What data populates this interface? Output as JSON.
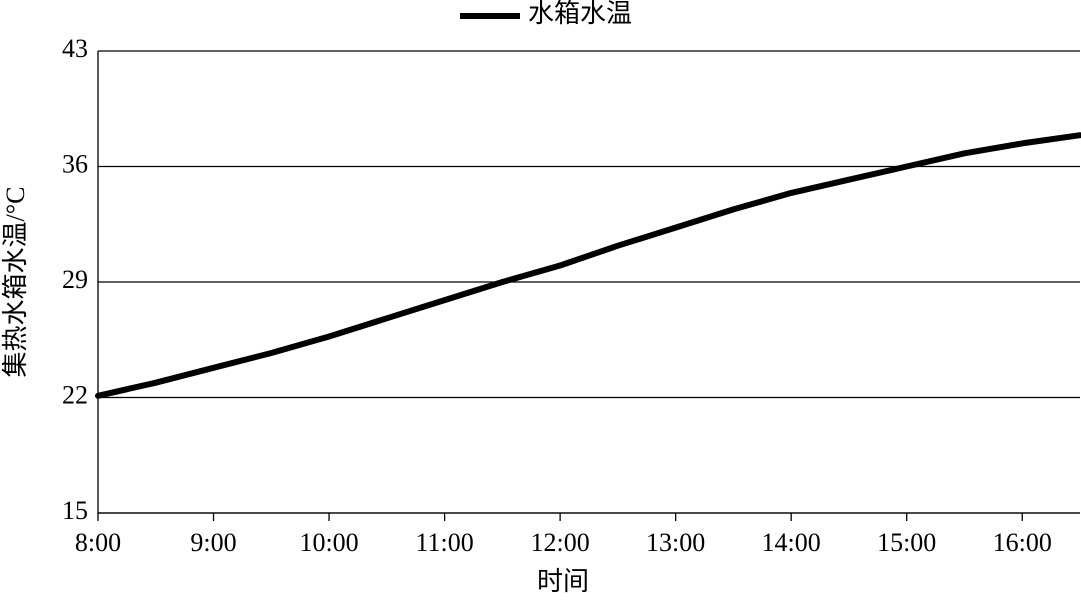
{
  "chart_data": {
    "type": "line",
    "x_label": "时间",
    "y_label": "集热水箱水温/°C",
    "x": [
      8,
      8.5,
      9,
      9.5,
      10,
      10.5,
      11,
      11.5,
      12,
      12.5,
      13,
      13.5,
      14,
      14.5,
      15,
      15.5,
      16,
      16.5
    ],
    "series": [
      {
        "name": "水箱水温",
        "color": "#000000",
        "values": [
          22.1,
          22.9,
          23.8,
          24.7,
          25.7,
          26.8,
          27.9,
          29.0,
          30.0,
          31.2,
          32.3,
          33.4,
          34.4,
          35.2,
          36.0,
          36.8,
          37.4,
          37.9
        ]
      }
    ],
    "xlim": [
      8,
      16.5
    ],
    "xticks": [
      {
        "value": 8,
        "label": "8:00"
      },
      {
        "value": 9,
        "label": "9:00"
      },
      {
        "value": 10,
        "label": "10:00"
      },
      {
        "value": 11,
        "label": "11:00"
      },
      {
        "value": 12,
        "label": "12:00"
      },
      {
        "value": 13,
        "label": "13:00"
      },
      {
        "value": 14,
        "label": "14:00"
      },
      {
        "value": 15,
        "label": "15:00"
      },
      {
        "value": 16,
        "label": "16:00"
      }
    ],
    "ylim": [
      15,
      43
    ],
    "yticks": [
      15,
      22,
      29,
      36,
      43
    ],
    "grid": true,
    "legend": "top"
  }
}
